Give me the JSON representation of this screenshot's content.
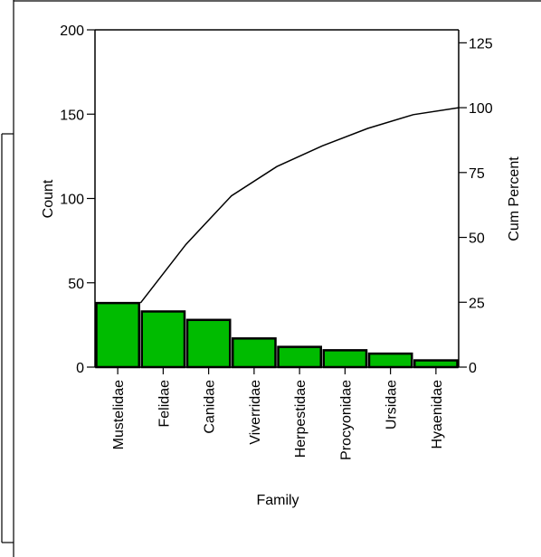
{
  "chart_data": {
    "type": "bar",
    "title": "",
    "xlabel": "Family",
    "ylabel": "Count",
    "y2label": "Cum Percent",
    "categories": [
      "Mustelidae",
      "Felidae",
      "Canidae",
      "Viverridae",
      "Herpestidae",
      "Procyonidae",
      "Ursidae",
      "Hyaenidae"
    ],
    "values": [
      38,
      33,
      28,
      17,
      12,
      10,
      8,
      4
    ],
    "cum_percent": [
      25.3,
      47.3,
      66.0,
      77.3,
      85.3,
      92.0,
      97.3,
      100.0
    ],
    "ylim": [
      0,
      200
    ],
    "y2lim": [
      0,
      130
    ],
    "yticks": [
      "0",
      "50",
      "100",
      "150",
      "200"
    ],
    "y2ticks": [
      "0",
      "25",
      "50",
      "75",
      "100",
      "125"
    ],
    "bar_color": "#00bb00",
    "line_color": "#000000",
    "grid": false,
    "legend": "none"
  }
}
